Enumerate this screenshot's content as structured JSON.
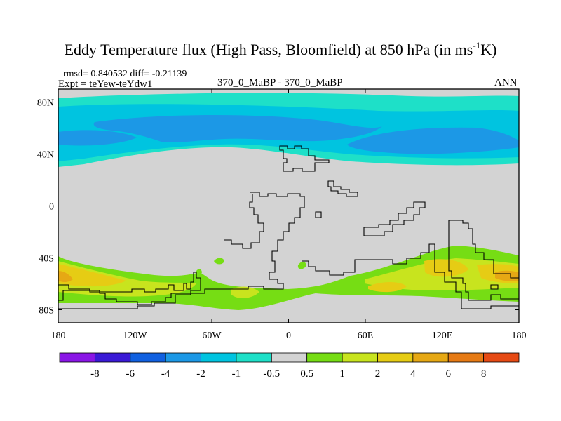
{
  "title": {
    "main": "Eddy Temperature flux (High Pass, Bloomfield) at 850 hPa (in ms",
    "sup": "-1",
    "end": "K)"
  },
  "stats": "rmsd= 0.840532 diff= -0.21139",
  "expt": "Expt = teYew-teYdw1",
  "case": "370_0_MaBP - 370_0_MaBP",
  "season": "ANN",
  "map": {
    "projection": "cylindrical equidistant",
    "land_color": "#d3d3d3",
    "lon_range": [
      -180,
      180
    ],
    "lat_range": [
      -90,
      90
    ],
    "x_ticks": [
      {
        "lon": -180,
        "label": "180"
      },
      {
        "lon": -120,
        "label": "120W"
      },
      {
        "lon": -60,
        "label": "60W"
      },
      {
        "lon": 0,
        "label": "0"
      },
      {
        "lon": 60,
        "label": "60E"
      },
      {
        "lon": 120,
        "label": "120E"
      },
      {
        "lon": 180,
        "label": "180"
      }
    ],
    "y_ticks": [
      {
        "lat": 80,
        "label": "80N"
      },
      {
        "lat": 40,
        "label": "40N"
      },
      {
        "lat": 0,
        "label": "0"
      },
      {
        "lat": -40,
        "label": "40S"
      },
      {
        "lat": -80,
        "label": "80S"
      }
    ]
  },
  "colorbar": {
    "colors": [
      "#8a16e6",
      "#3a1ad6",
      "#1060e0",
      "#1c98e6",
      "#00c4e0",
      "#1ee0c8",
      "#d3d3d3",
      "#76dd14",
      "#c8e41e",
      "#e6cc14",
      "#e6a814",
      "#e67a14",
      "#e64a14"
    ],
    "labels": [
      "-8",
      "-6",
      "-4",
      "-2",
      "-1",
      "-0.5",
      "0.5",
      "1",
      "2",
      "4",
      "6",
      "8"
    ]
  }
}
